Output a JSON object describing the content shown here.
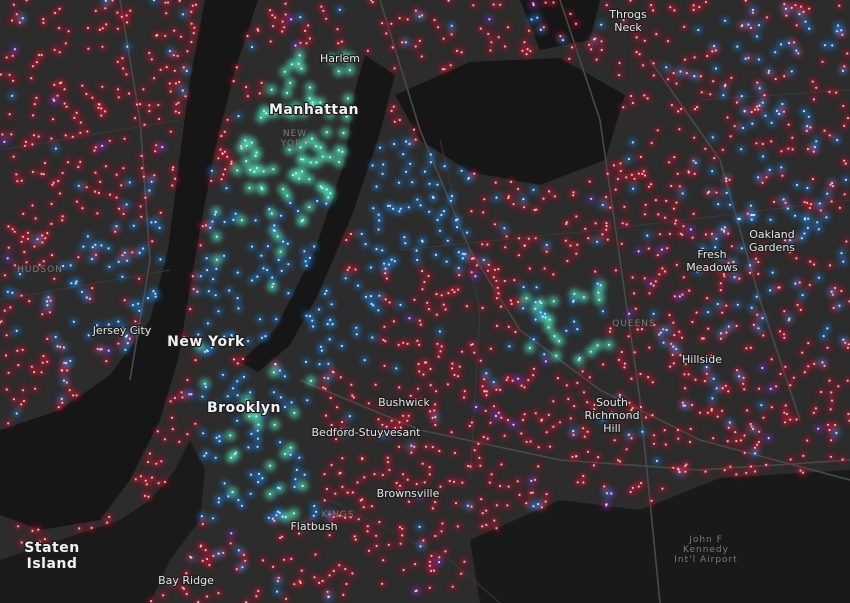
{
  "labels": [
    [
      "Throgs",
      "Neck"
    ],
    [
      "Harlem"
    ],
    [
      "Manhattan"
    ],
    [
      "NEW",
      "YORK"
    ],
    [
      "HUDSON"
    ],
    [
      "Jersey City"
    ],
    [
      "New York"
    ],
    [
      "Brooklyn"
    ],
    [
      "Bushwick"
    ],
    [
      "Bedford-Stuyvesant"
    ],
    [
      "Brownsville"
    ],
    [
      "KINGS"
    ],
    [
      "Flatbush"
    ],
    [
      "Bay Ridge"
    ],
    [
      "Staten",
      "Island"
    ],
    [
      "Oakland",
      "Gardens"
    ],
    [
      "Fresh",
      "Meadows"
    ],
    [
      "QUEENS"
    ],
    [
      "Hillside"
    ],
    [
      "South",
      "Richmond",
      "Hill"
    ],
    [
      "John F",
      "Kennedy",
      "Int'l Airport"
    ]
  ]
}
